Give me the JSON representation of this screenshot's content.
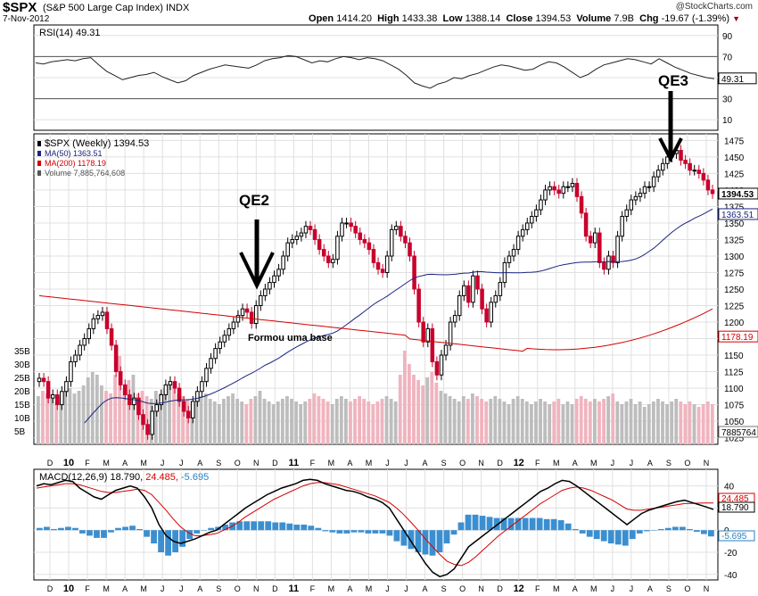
{
  "header": {
    "ticker": "$SPX",
    "name": "(S&P 500 Large Cap Index)",
    "exchange": "INDX",
    "date": "7-Nov-2012",
    "brand": "@StockCharts.com",
    "open_label": "Open",
    "open": "1414.20",
    "high_label": "High",
    "high": "1433.38",
    "low_label": "Low",
    "low": "1388.14",
    "close_label": "Close",
    "close": "1394.53",
    "volume_label": "Volume",
    "volume": "7.9B",
    "chg_label": "Chg",
    "chg": "-19.67 (-1.39%)"
  },
  "colors": {
    "up": "#000000",
    "down": "#c8002c",
    "ma50": "#1a237e",
    "ma200": "#d40000",
    "macd_hist": "#3b8fd0",
    "vol_up": "#bdbdbd",
    "vol_down": "#f0b4be",
    "grid": "#e0e0e0",
    "rsi_fill": "#4caf50"
  },
  "chart_data": [
    {
      "type": "line",
      "panel": "rsi",
      "legend": "RSI(14) 49.31",
      "ylim": [
        0,
        100
      ],
      "yticks": [
        10,
        30,
        50,
        70,
        90
      ],
      "last_value": "49.31",
      "levels": [
        70,
        30
      ],
      "values": [
        64,
        63,
        65,
        66,
        67,
        66,
        68,
        69,
        62,
        56,
        52,
        48,
        50,
        52,
        53,
        55,
        51,
        48,
        45,
        47,
        52,
        55,
        58,
        60,
        62,
        61,
        60,
        59,
        62,
        66,
        68,
        69,
        71,
        70,
        67,
        64,
        66,
        65,
        68,
        70,
        69,
        67,
        69,
        68,
        66,
        62,
        58,
        52,
        45,
        42,
        40,
        44,
        46,
        50,
        49,
        52,
        54,
        57,
        60,
        62,
        61,
        59,
        57,
        58,
        62,
        65,
        64,
        60,
        55,
        50,
        53,
        58,
        62,
        64,
        66,
        68,
        67,
        65,
        63,
        68,
        64,
        60,
        57,
        54,
        52,
        50,
        49
      ]
    },
    {
      "type": "candlestick",
      "panel": "price",
      "legend": [
        "$SPX (Weekly) 1394.53",
        "MA(50) 1363.51",
        "MA(200) 1178.19",
        "Volume 7,885,764,608"
      ],
      "ylim": [
        1015,
        1485
      ],
      "yticks": [
        1025,
        1050,
        1075,
        1100,
        1125,
        1150,
        1175,
        1200,
        1225,
        1250,
        1275,
        1300,
        1325,
        1350,
        1375,
        1400,
        1425,
        1450,
        1475
      ],
      "close_values": [
        1115,
        1110,
        1085,
        1090,
        1075,
        1095,
        1110,
        1140,
        1150,
        1165,
        1175,
        1190,
        1205,
        1210,
        1215,
        1190,
        1165,
        1125,
        1105,
        1090,
        1075,
        1085,
        1060,
        1045,
        1030,
        1065,
        1075,
        1090,
        1105,
        1110,
        1100,
        1080,
        1065,
        1055,
        1080,
        1095,
        1110,
        1130,
        1145,
        1160,
        1170,
        1180,
        1190,
        1200,
        1210,
        1220,
        1215,
        1198,
        1225,
        1240,
        1250,
        1260,
        1270,
        1280,
        1300,
        1320,
        1325,
        1330,
        1335,
        1345,
        1340,
        1325,
        1310,
        1300,
        1290,
        1295,
        1330,
        1350,
        1350,
        1345,
        1335,
        1325,
        1320,
        1310,
        1290,
        1280,
        1275,
        1300,
        1340,
        1345,
        1330,
        1320,
        1300,
        1250,
        1200,
        1170,
        1190,
        1140,
        1120,
        1150,
        1165,
        1200,
        1210,
        1240,
        1255,
        1230,
        1270,
        1250,
        1220,
        1200,
        1230,
        1240,
        1260,
        1290,
        1300,
        1310,
        1330,
        1340,
        1350,
        1360,
        1370,
        1385,
        1400,
        1405,
        1400,
        1395,
        1405,
        1405,
        1410,
        1390,
        1365,
        1330,
        1320,
        1335,
        1290,
        1280,
        1300,
        1290,
        1330,
        1360,
        1370,
        1385,
        1390,
        1395,
        1405,
        1405,
        1420,
        1430,
        1440,
        1450,
        1455,
        1460,
        1445,
        1440,
        1430,
        1430,
        1425,
        1415,
        1400,
        1394.53
      ],
      "ma50_last": "1363.51",
      "ma200_last": "1178.19",
      "last_label": "1394.53",
      "volume_last": "7885764",
      "volume_axis": [
        "5B",
        "10B",
        "15B",
        "20B",
        "25B",
        "30B",
        "35B"
      ],
      "volume_values": [
        18,
        20,
        19,
        17,
        16,
        18,
        20,
        21,
        19,
        20,
        22,
        25,
        27,
        26,
        22,
        20,
        19,
        26,
        33,
        21,
        24,
        26,
        19,
        20,
        18,
        17,
        20,
        19,
        21,
        23,
        22,
        19,
        18,
        17,
        16,
        17,
        18,
        19,
        17,
        16,
        15,
        17,
        18,
        19,
        17,
        16,
        15,
        17,
        18,
        20,
        17,
        16,
        15,
        16,
        17,
        18,
        17,
        16,
        15,
        16,
        17,
        19,
        18,
        17,
        16,
        15,
        17,
        18,
        17,
        16,
        17,
        18,
        17,
        16,
        15,
        16,
        17,
        18,
        17,
        16,
        26,
        35,
        30,
        26,
        24,
        22,
        25,
        27,
        23,
        20,
        19,
        18,
        17,
        16,
        18,
        17,
        19,
        18,
        17,
        16,
        17,
        18,
        17,
        16,
        15,
        17,
        18,
        17,
        16,
        15,
        16,
        17,
        16,
        15,
        16,
        17,
        15,
        16,
        15,
        17,
        18,
        17,
        16,
        17,
        16,
        17,
        18,
        19,
        16,
        15,
        16,
        17,
        15,
        16,
        14,
        15,
        16,
        17,
        16,
        15,
        16,
        17,
        16,
        15,
        16,
        15,
        14,
        15,
        16,
        15
      ],
      "annotations": [
        "QE2",
        "QE3",
        "Formou uma base"
      ],
      "x_months": [
        "D",
        "10",
        "F",
        "M",
        "A",
        "M",
        "J",
        "J",
        "A",
        "S",
        "O",
        "N",
        "D",
        "11",
        "F",
        "M",
        "A",
        "M",
        "J",
        "J",
        "A",
        "S",
        "O",
        "N",
        "D",
        "12",
        "F",
        "M",
        "A",
        "M",
        "J",
        "J",
        "A",
        "S",
        "O",
        "N"
      ]
    },
    {
      "type": "line",
      "panel": "macd",
      "legend": [
        "MACD(12,26,9)",
        "18.790,",
        "24.485,",
        "-5.695"
      ],
      "ylim": [
        -45,
        55
      ],
      "yticks": [
        -40,
        -20,
        0,
        20,
        40
      ],
      "last_values": [
        "24.485",
        "18.790",
        "-5.695"
      ],
      "macd": [
        40,
        42,
        41,
        43,
        45,
        44,
        38,
        34,
        30,
        28,
        32,
        36,
        38,
        40,
        38,
        30,
        20,
        5,
        -5,
        -10,
        -12,
        -10,
        -8,
        -5,
        -2,
        0,
        5,
        10,
        15,
        20,
        24,
        28,
        32,
        35,
        38,
        40,
        42,
        45,
        46,
        45,
        42,
        40,
        38,
        36,
        35,
        33,
        30,
        28,
        25,
        20,
        10,
        0,
        -10,
        -20,
        -30,
        -38,
        -42,
        -40,
        -35,
        -25,
        -15,
        -10,
        -5,
        0,
        5,
        10,
        15,
        20,
        25,
        30,
        35,
        38,
        42,
        45,
        44,
        40,
        35,
        30,
        25,
        20,
        15,
        10,
        5,
        10,
        15,
        18,
        20,
        22,
        24,
        26,
        27,
        25,
        23,
        21,
        18.79
      ],
      "signal": [
        38,
        39,
        40,
        41,
        42,
        42,
        41,
        39,
        37,
        35,
        34,
        34,
        35,
        36,
        37,
        36,
        32,
        25,
        18,
        10,
        3,
        -2,
        -5,
        -5,
        -4,
        -3,
        0,
        3,
        7,
        12,
        16,
        20,
        24,
        28,
        31,
        34,
        37,
        40,
        42,
        43,
        43,
        42,
        41,
        39,
        37,
        35,
        33,
        31,
        28,
        25,
        20,
        14,
        7,
        0,
        -8,
        -15,
        -22,
        -28,
        -31,
        -32,
        -29,
        -24,
        -18,
        -12,
        -6,
        -1,
        4,
        9,
        14,
        19,
        24,
        28,
        32,
        36,
        38,
        39,
        38,
        36,
        33,
        30,
        27,
        23,
        19,
        18,
        18,
        19,
        20,
        21,
        22,
        23,
        24,
        24.2,
        24.4,
        24.5,
        24.485
      ],
      "histogram": [
        2,
        3,
        1,
        2,
        3,
        2,
        -3,
        -5,
        -7,
        -7,
        -2,
        2,
        3,
        4,
        1,
        -6,
        -12,
        -20,
        -23,
        -20,
        -15,
        -8,
        -3,
        0,
        2,
        3,
        5,
        7,
        8,
        8,
        8,
        8,
        8,
        7,
        7,
        6,
        5,
        5,
        4,
        2,
        -1,
        -2,
        -3,
        -3,
        -2,
        -2,
        -3,
        -3,
        -3,
        -5,
        -10,
        -14,
        -17,
        -20,
        -22,
        -23,
        -20,
        -12,
        -4,
        7,
        14,
        14,
        13,
        12,
        11,
        11,
        11,
        11,
        11,
        11,
        11,
        10,
        10,
        9,
        6,
        1,
        -3,
        -6,
        -8,
        -10,
        -12,
        -13,
        -14,
        -8,
        -3,
        -1,
        0,
        1,
        2,
        3,
        3,
        1,
        -1.5,
        -3.5,
        -5.695
      ],
      "x_months": [
        "D",
        "10",
        "F",
        "M",
        "A",
        "M",
        "J",
        "J",
        "A",
        "S",
        "O",
        "N",
        "D",
        "11",
        "F",
        "M",
        "A",
        "M",
        "J",
        "J",
        "A",
        "S",
        "O",
        "N",
        "D",
        "12",
        "F",
        "M",
        "A",
        "M",
        "J",
        "J",
        "A",
        "S",
        "O",
        "N"
      ]
    }
  ]
}
